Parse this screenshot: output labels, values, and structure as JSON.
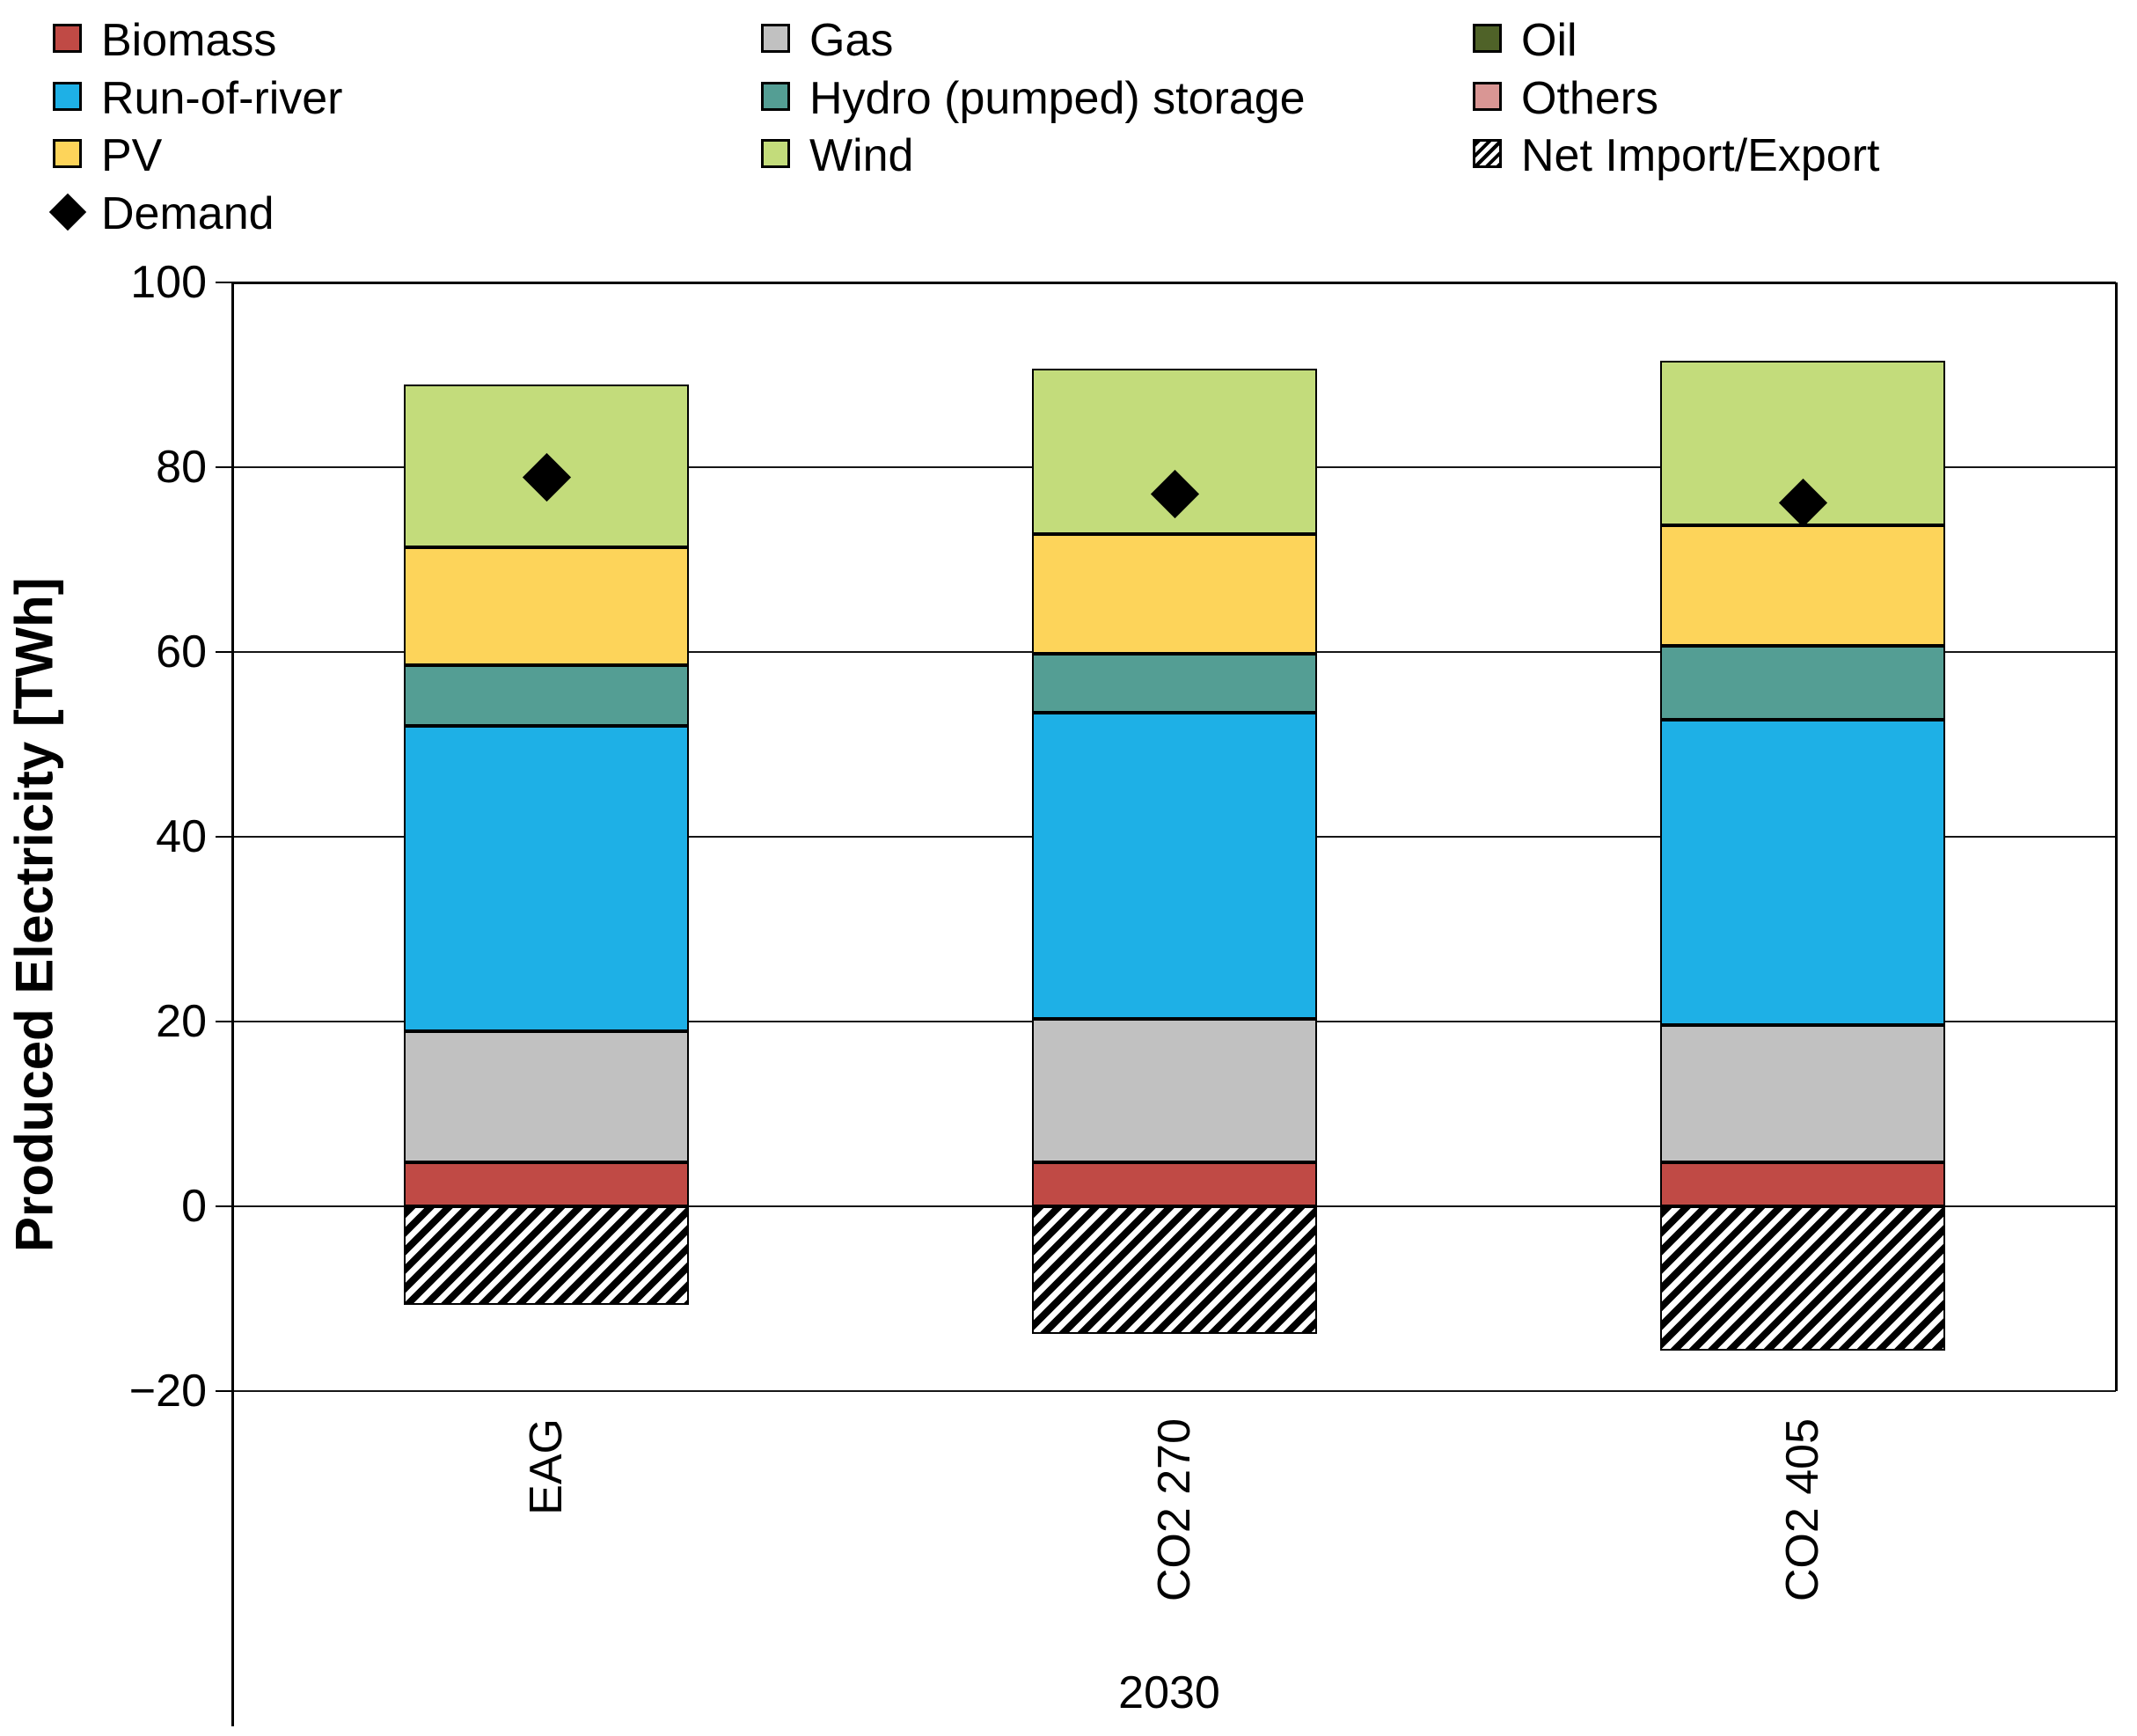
{
  "chart_data": {
    "type": "bar",
    "subtype": "stacked-with-negative",
    "title": "",
    "ylabel": "Produced Electricity [TWh]",
    "xlabel": "",
    "group_label": "2030",
    "ylim": [
      -20,
      100
    ],
    "grid": true,
    "legend_position": "top",
    "categories": [
      "EAG",
      "CO2 270",
      "CO2 405"
    ],
    "yticks": [
      {
        "v": 100,
        "label": "100"
      },
      {
        "v": 80,
        "label": "80"
      },
      {
        "v": 60,
        "label": "60"
      },
      {
        "v": 40,
        "label": "40"
      },
      {
        "v": 20,
        "label": "20"
      },
      {
        "v": 0,
        "label": "0"
      },
      {
        "v": -20,
        "label": "−20"
      }
    ],
    "series": [
      {
        "name": "Biomass",
        "color": "#C04A45",
        "values": [
          4.8,
          4.8,
          4.8
        ]
      },
      {
        "name": "Gas",
        "color": "#C1C1C1",
        "values": [
          14.2,
          15.5,
          14.8
        ]
      },
      {
        "name": "Oil",
        "color": "#4F6228",
        "values": [
          0,
          0,
          0
        ]
      },
      {
        "name": "Run-of-river",
        "color": "#1EB0E6",
        "values": [
          33.0,
          33.1,
          33.1
        ]
      },
      {
        "name": "Hydro (pumped) storage",
        "color": "#549E94",
        "values": [
          6.6,
          6.4,
          8.0
        ]
      },
      {
        "name": "Others",
        "color": "#D99694",
        "values": [
          0,
          0,
          0
        ]
      },
      {
        "name": "PV",
        "color": "#FDD45A",
        "values": [
          12.7,
          13.0,
          13.0
        ]
      },
      {
        "name": "Wind",
        "color": "#C3DC7B",
        "values": [
          17.7,
          17.9,
          17.8
        ]
      },
      {
        "name": "Net Import/Export",
        "pattern": "hatch",
        "values": [
          -10.7,
          -13.8,
          -15.6
        ]
      }
    ],
    "demand_series": {
      "name": "Demand",
      "color": "#000000",
      "marker": "diamond",
      "values": [
        78.9,
        77.1,
        76.1
      ]
    },
    "stack_totals_positive": [
      89.0,
      90.7,
      91.5
    ]
  },
  "legend": {
    "items": [
      {
        "label": "Biomass",
        "type": "color",
        "color": "#C04A45",
        "col": 0,
        "row": 0
      },
      {
        "label": "Gas",
        "type": "color",
        "color": "#C1C1C1",
        "col": 1,
        "row": 0
      },
      {
        "label": "Oil",
        "type": "color",
        "color": "#4F6228",
        "col": 2,
        "row": 0
      },
      {
        "label": "Run-of-river",
        "type": "color",
        "color": "#1EB0E6",
        "col": 0,
        "row": 1
      },
      {
        "label": "Hydro (pumped) storage",
        "type": "color",
        "color": "#549E94",
        "col": 1,
        "row": 1
      },
      {
        "label": "Others",
        "type": "color",
        "color": "#D99694",
        "col": 2,
        "row": 1
      },
      {
        "label": "PV",
        "type": "color",
        "color": "#FDD45A",
        "col": 0,
        "row": 2
      },
      {
        "label": "Wind",
        "type": "color",
        "color": "#C3DC7B",
        "col": 1,
        "row": 2
      },
      {
        "label": "Net Import/Export",
        "type": "hatch",
        "col": 2,
        "row": 2
      },
      {
        "label": "Demand",
        "type": "diamond",
        "color": "#000000",
        "col": 0,
        "row": 3
      }
    ]
  }
}
